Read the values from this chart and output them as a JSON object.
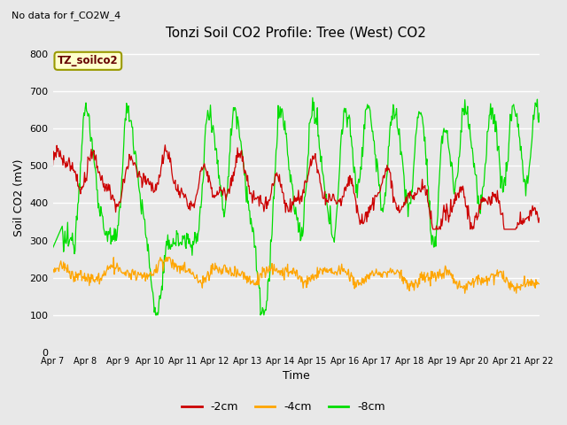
{
  "title": "Tonzi Soil CO2 Profile: Tree (West) CO2",
  "subtitle": "No data for f_CO2W_4",
  "xlabel": "Time",
  "ylabel": "Soil CO2 (mV)",
  "legend_label": "TZ_soilco2",
  "ylim": [
    0,
    830
  ],
  "yticks": [
    0,
    100,
    200,
    300,
    400,
    500,
    600,
    700,
    800
  ],
  "background_color": "#e8e8e8",
  "grid_color": "#ffffff",
  "line_2cm_color": "#cc0000",
  "line_4cm_color": "#ffa500",
  "line_8cm_color": "#00dd00",
  "title_fontsize": 11,
  "axis_fontsize": 9,
  "tick_fontsize": 8,
  "legend_fontsize": 9,
  "xtick_labels": [
    "Apr 7",
    "Apr 8",
    "Apr 9",
    "Apr 10",
    "Apr 11",
    "Apr 12",
    "Apr 13",
    "Apr 14",
    "Apr 15",
    "Apr 16",
    "Apr 17",
    "Apr 18",
    "Apr 19",
    "Apr 20",
    "Apr 21",
    "Apr 22"
  ],
  "n_points": 720
}
